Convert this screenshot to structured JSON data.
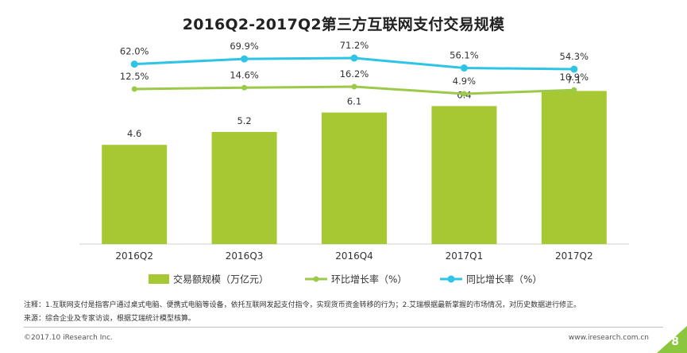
{
  "chart_data": {
    "type": "bar",
    "title": "2016Q2-2017Q2第三方互联网支付交易规模",
    "categories": [
      "2016Q2",
      "2016Q3",
      "2016Q4",
      "2017Q1",
      "2017Q2"
    ],
    "series": [
      {
        "name": "交易额规模（万亿元）",
        "type": "bar",
        "values": [
          4.6,
          5.2,
          6.1,
          6.4,
          7.1
        ],
        "labels": [
          "4.6",
          "5.2",
          "6.1",
          "6.4",
          "7.1"
        ],
        "color": "#a6c832"
      },
      {
        "name": "环比增长率（%）",
        "type": "line",
        "values": [
          12.5,
          14.6,
          16.2,
          4.9,
          10.9
        ],
        "labels": [
          "12.5%",
          "14.6%",
          "16.2%",
          "4.9%",
          "10.9%"
        ],
        "color": "#9cc94a"
      },
      {
        "name": "同比增长率（%）",
        "type": "line",
        "values": [
          62.0,
          69.9,
          71.2,
          56.1,
          54.3
        ],
        "labels": [
          "62.0%",
          "69.9%",
          "71.2%",
          "56.1%",
          "54.3%"
        ],
        "color": "#2ec4e6"
      }
    ],
    "bar_ylim": [
      0,
      8
    ],
    "legend_position": "bottom",
    "grid": false
  },
  "notes": {
    "note_line": "注释：1.互联网支付是指客户通过桌式电脑、便携式电脑等设备，依托互联网发起支付指令，实现货币资金转移的行为；2.艾瑞根据最新掌握的市场情况，对历史数据进行修正。",
    "source_line": "来源：综合企业及专家访谈，根据艾瑞统计模型核算。"
  },
  "footer": {
    "copyright": "©2017.10 iResearch Inc.",
    "website": "www.iresearch.com.cn",
    "page_number": "8"
  },
  "colors": {
    "corner": "#8cc63f"
  }
}
